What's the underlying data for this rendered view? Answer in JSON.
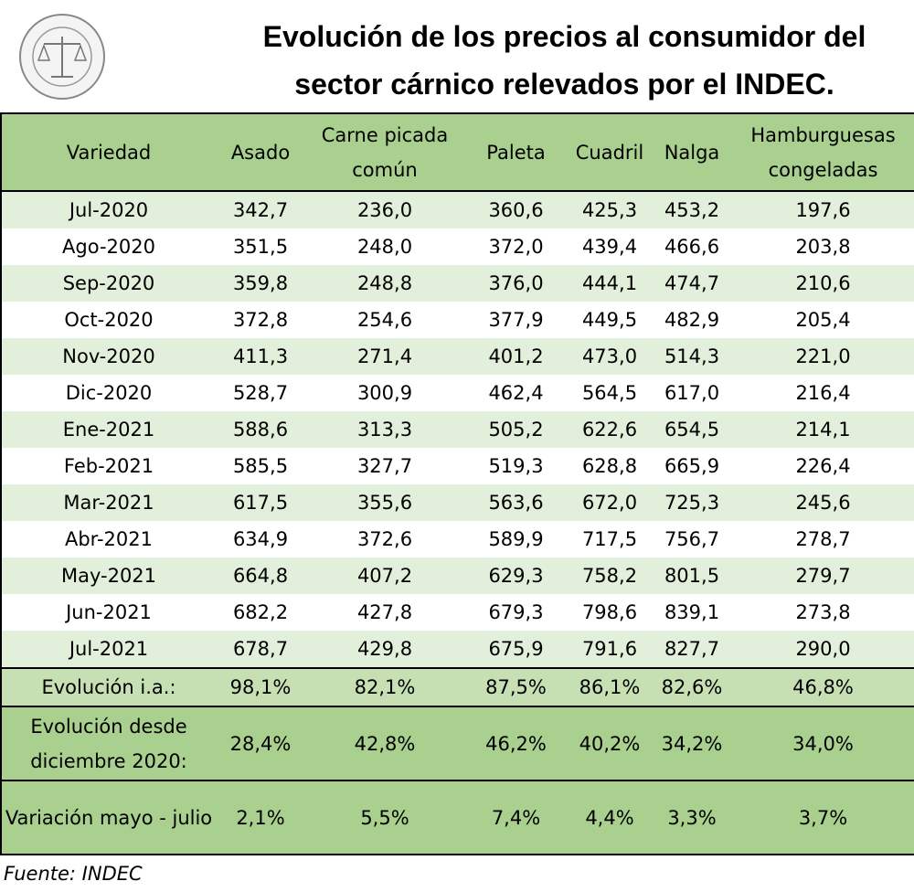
{
  "title_lines": [
    "Evolución de los precios al consumidor del",
    "sector cárnico relevados por el INDEC."
  ],
  "table": {
    "header": [
      "Variedad",
      "Asado",
      "Carne picada común",
      "Paleta",
      "Cuadril",
      "Nalga",
      "Hamburguesas congeladas"
    ],
    "rows": [
      [
        "Jul-2020",
        "342,7",
        "236,0",
        "360,6",
        "425,3",
        "453,2",
        "197,6"
      ],
      [
        "Ago-2020",
        "351,5",
        "248,0",
        "372,0",
        "439,4",
        "466,6",
        "203,8"
      ],
      [
        "Sep-2020",
        "359,8",
        "248,8",
        "376,0",
        "444,1",
        "474,7",
        "210,6"
      ],
      [
        "Oct-2020",
        "372,8",
        "254,6",
        "377,9",
        "449,5",
        "482,9",
        "205,4"
      ],
      [
        "Nov-2020",
        "411,3",
        "271,4",
        "401,2",
        "473,0",
        "514,3",
        "221,0"
      ],
      [
        "Dic-2020",
        "528,7",
        "300,9",
        "462,4",
        "564,5",
        "617,0",
        "216,4"
      ],
      [
        "Ene-2021",
        "588,6",
        "313,3",
        "505,2",
        "622,6",
        "654,5",
        "214,1"
      ],
      [
        "Feb-2021",
        "585,5",
        "327,7",
        "519,3",
        "628,8",
        "665,9",
        "226,4"
      ],
      [
        "Mar-2021",
        "617,5",
        "355,6",
        "563,6",
        "672,0",
        "725,3",
        "245,6"
      ],
      [
        "Abr-2021",
        "634,9",
        "372,6",
        "589,9",
        "717,5",
        "756,7",
        "278,7"
      ],
      [
        "May-2021",
        "664,8",
        "407,2",
        "629,3",
        "758,2",
        "801,5",
        "279,7"
      ],
      [
        "Jun-2021",
        "682,2",
        "427,8",
        "679,3",
        "798,6",
        "839,1",
        "273,8"
      ],
      [
        "Jul-2021",
        "678,7",
        "429,8",
        "675,9",
        "791,6",
        "827,7",
        "290,0"
      ]
    ],
    "summary": [
      [
        "Evolución i.a.:",
        "98,1%",
        "82,1%",
        "87,5%",
        "86,1%",
        "82,6%",
        "46,8%"
      ],
      [
        "Evolución desde diciembre 2020:",
        "28,4%",
        "42,8%",
        "46,2%",
        "40,2%",
        "34,2%",
        "34,0%"
      ],
      [
        "Variación mayo - julio",
        "2,1%",
        "5,5%",
        "7,4%",
        "4,4%",
        "3,3%",
        "3,7%"
      ]
    ]
  },
  "source": "Fuente: INDEC"
}
